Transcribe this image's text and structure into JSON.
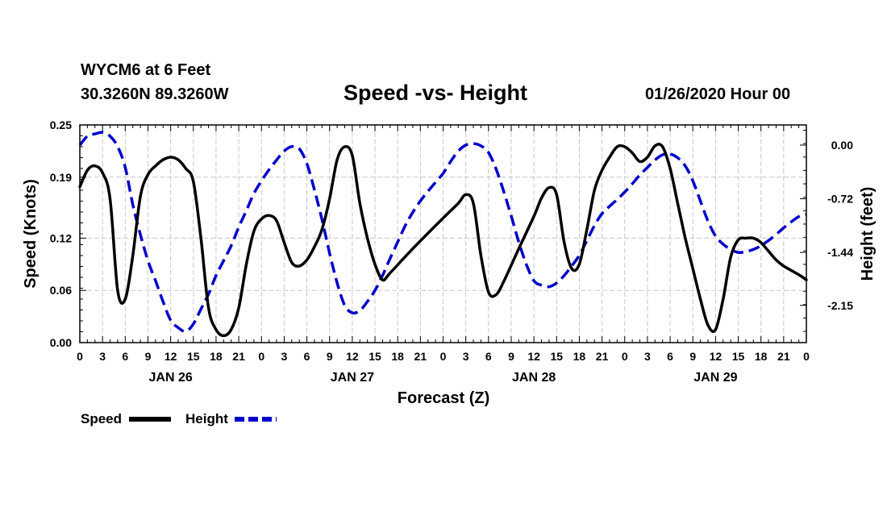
{
  "header": {
    "station": "WYCM6 at 6 Feet",
    "coords": "30.3260N 89.3260W",
    "title": "Speed -vs- Height",
    "stamp": "01/26/2020 Hour 00"
  },
  "colors": {
    "speed": "#000000",
    "height": "#0000cc",
    "grid": "#c8c8c8"
  },
  "chart_data": {
    "type": "line",
    "title": "Speed -vs- Height",
    "xlabel": "Forecast (Z)",
    "ylabel": "Speed (Knots)",
    "ylabel_right": "Height (feet)",
    "xlim": [
      0,
      96
    ],
    "ylim": [
      0,
      0.25
    ],
    "ylim_right": [
      -2.65,
      0.27
    ],
    "grid": true,
    "legend_position": "bottom-left",
    "x_tick_labels": [
      "0",
      "3",
      "6",
      "9",
      "12",
      "15",
      "18",
      "21",
      "0",
      "3",
      "6",
      "9",
      "12",
      "15",
      "18",
      "21",
      "0",
      "3",
      "6",
      "9",
      "12",
      "15",
      "18",
      "21",
      "0",
      "3",
      "6",
      "9",
      "12",
      "15",
      "18",
      "21",
      "0"
    ],
    "day_labels": [
      "JAN 26",
      "JAN 27",
      "JAN 28",
      "JAN 29"
    ],
    "y_ticks_left": [
      "0.25",
      "0.19",
      "0.12",
      "0.06",
      "0.00"
    ],
    "y_ticks_right": [
      "0.00",
      "-0.72",
      "-1.44",
      "-2.15"
    ],
    "series": [
      {
        "name": "Speed",
        "axis": "left",
        "style": "solid",
        "points": [
          [
            0,
            0.179
          ],
          [
            1,
            0.198
          ],
          [
            2,
            0.203
          ],
          [
            3,
            0.195
          ],
          [
            4,
            0.165
          ],
          [
            5,
            0.06
          ],
          [
            6,
            0.05
          ],
          [
            7,
            0.1
          ],
          [
            8,
            0.168
          ],
          [
            9,
            0.193
          ],
          [
            10,
            0.203
          ],
          [
            11,
            0.21
          ],
          [
            12,
            0.213
          ],
          [
            13,
            0.21
          ],
          [
            14,
            0.2
          ],
          [
            15,
            0.185
          ],
          [
            16,
            0.12
          ],
          [
            17,
            0.04
          ],
          [
            18,
            0.015
          ],
          [
            19,
            0.008
          ],
          [
            20,
            0.015
          ],
          [
            21,
            0.04
          ],
          [
            22,
            0.09
          ],
          [
            23,
            0.128
          ],
          [
            24,
            0.142
          ],
          [
            25,
            0.146
          ],
          [
            26,
            0.14
          ],
          [
            27,
            0.115
          ],
          [
            28,
            0.092
          ],
          [
            29,
            0.088
          ],
          [
            30,
            0.095
          ],
          [
            31,
            0.11
          ],
          [
            32,
            0.13
          ],
          [
            33,
            0.165
          ],
          [
            34,
            0.21
          ],
          [
            35,
            0.225
          ],
          [
            36,
            0.215
          ],
          [
            37,
            0.16
          ],
          [
            38,
            0.12
          ],
          [
            39,
            0.09
          ],
          [
            40,
            0.072
          ],
          [
            41,
            0.08
          ],
          [
            44,
            0.108
          ],
          [
            48,
            0.143
          ],
          [
            50,
            0.16
          ],
          [
            51,
            0.17
          ],
          [
            52,
            0.16
          ],
          [
            53,
            0.1
          ],
          [
            54,
            0.058
          ],
          [
            55,
            0.055
          ],
          [
            56,
            0.07
          ],
          [
            58,
            0.108
          ],
          [
            60,
            0.145
          ],
          [
            61,
            0.166
          ],
          [
            62,
            0.178
          ],
          [
            63,
            0.17
          ],
          [
            64,
            0.115
          ],
          [
            65,
            0.085
          ],
          [
            66,
            0.09
          ],
          [
            67,
            0.13
          ],
          [
            68,
            0.175
          ],
          [
            69,
            0.198
          ],
          [
            70,
            0.213
          ],
          [
            71,
            0.225
          ],
          [
            72,
            0.225
          ],
          [
            73,
            0.218
          ],
          [
            74,
            0.208
          ],
          [
            75,
            0.213
          ],
          [
            76,
            0.226
          ],
          [
            77,
            0.225
          ],
          [
            78,
            0.2
          ],
          [
            79,
            0.16
          ],
          [
            80,
            0.12
          ],
          [
            81,
            0.085
          ],
          [
            82,
            0.05
          ],
          [
            83,
            0.02
          ],
          [
            84,
            0.015
          ],
          [
            85,
            0.05
          ],
          [
            86,
            0.098
          ],
          [
            87,
            0.118
          ],
          [
            88,
            0.12
          ],
          [
            89,
            0.12
          ],
          [
            90,
            0.115
          ],
          [
            91,
            0.105
          ],
          [
            92,
            0.095
          ],
          [
            93,
            0.088
          ],
          [
            95,
            0.078
          ],
          [
            96,
            0.072
          ]
        ]
      },
      {
        "name": "Height",
        "axis": "right",
        "style": "dashed",
        "points": [
          [
            0,
            0.0
          ],
          [
            1,
            0.12
          ],
          [
            2,
            0.15
          ],
          [
            3,
            0.17
          ],
          [
            4,
            0.12
          ],
          [
            5,
            -0.02
          ],
          [
            6,
            -0.3
          ],
          [
            7,
            -0.8
          ],
          [
            8,
            -1.2
          ],
          [
            9,
            -1.55
          ],
          [
            10,
            -1.82
          ],
          [
            11,
            -2.1
          ],
          [
            12,
            -2.35
          ],
          [
            13,
            -2.45
          ],
          [
            14,
            -2.5
          ],
          [
            15,
            -2.4
          ],
          [
            16,
            -2.2
          ],
          [
            17,
            -2.0
          ],
          [
            18,
            -1.75
          ],
          [
            19,
            -1.55
          ],
          [
            20,
            -1.35
          ],
          [
            21,
            -1.1
          ],
          [
            22,
            -0.88
          ],
          [
            23,
            -0.65
          ],
          [
            24,
            -0.48
          ],
          [
            25,
            -0.33
          ],
          [
            26,
            -0.2
          ],
          [
            27,
            -0.08
          ],
          [
            28,
            -0.02
          ],
          [
            29,
            -0.05
          ],
          [
            30,
            -0.25
          ],
          [
            31,
            -0.6
          ],
          [
            32,
            -1.0
          ],
          [
            33,
            -1.45
          ],
          [
            34,
            -1.85
          ],
          [
            35,
            -2.15
          ],
          [
            36,
            -2.25
          ],
          [
            37,
            -2.22
          ],
          [
            38,
            -2.1
          ],
          [
            39,
            -1.95
          ],
          [
            40,
            -1.75
          ],
          [
            41,
            -1.52
          ],
          [
            42,
            -1.3
          ],
          [
            43,
            -1.08
          ],
          [
            44,
            -0.9
          ],
          [
            45,
            -0.75
          ],
          [
            46,
            -0.62
          ],
          [
            47,
            -0.5
          ],
          [
            48,
            -0.38
          ],
          [
            49,
            -0.22
          ],
          [
            50,
            -0.08
          ],
          [
            51,
            0.0
          ],
          [
            52,
            0.02
          ],
          [
            53,
            -0.01
          ],
          [
            54,
            -0.1
          ],
          [
            55,
            -0.32
          ],
          [
            56,
            -0.62
          ],
          [
            57,
            -0.95
          ],
          [
            58,
            -1.3
          ],
          [
            59,
            -1.6
          ],
          [
            60,
            -1.82
          ],
          [
            61,
            -1.88
          ],
          [
            62,
            -1.9
          ],
          [
            63,
            -1.85
          ],
          [
            64,
            -1.75
          ],
          [
            65,
            -1.62
          ],
          [
            66,
            -1.48
          ],
          [
            67,
            -1.28
          ],
          [
            68,
            -1.08
          ],
          [
            69,
            -0.92
          ],
          [
            70,
            -0.82
          ],
          [
            71,
            -0.73
          ],
          [
            72,
            -0.63
          ],
          [
            73,
            -0.52
          ],
          [
            74,
            -0.4
          ],
          [
            75,
            -0.3
          ],
          [
            76,
            -0.2
          ],
          [
            77,
            -0.13
          ],
          [
            78,
            -0.12
          ],
          [
            79,
            -0.17
          ],
          [
            80,
            -0.28
          ],
          [
            81,
            -0.48
          ],
          [
            82,
            -0.75
          ],
          [
            83,
            -1.02
          ],
          [
            84,
            -1.22
          ],
          [
            85,
            -1.33
          ],
          [
            86,
            -1.4
          ],
          [
            87,
            -1.44
          ],
          [
            88,
            -1.43
          ],
          [
            89,
            -1.4
          ],
          [
            90,
            -1.35
          ],
          [
            91,
            -1.28
          ],
          [
            92,
            -1.2
          ],
          [
            93,
            -1.11
          ],
          [
            94,
            -1.03
          ],
          [
            95,
            -0.96
          ],
          [
            96,
            -0.93
          ]
        ]
      }
    ]
  }
}
